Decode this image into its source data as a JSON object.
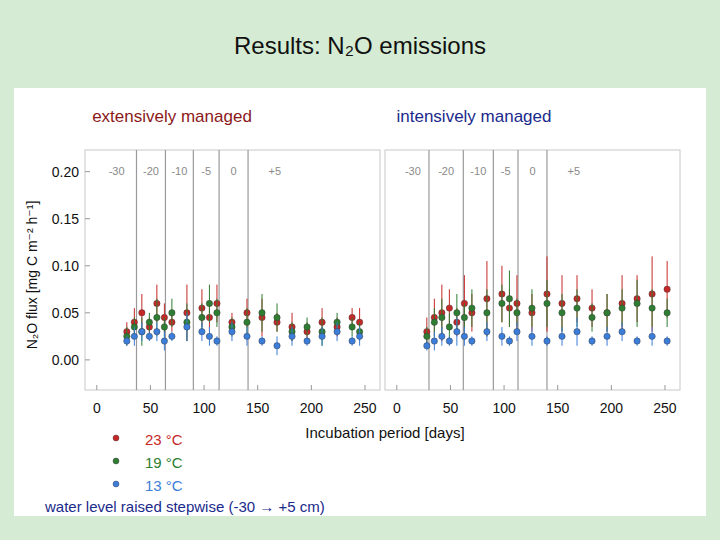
{
  "slide": {
    "title": "Results: N₂O emissions",
    "x_label": "Incubation period [days]",
    "footer": "water level raised stepwise (-30 → +5 cm)"
  },
  "chart_data": [
    {
      "type": "scatter",
      "title": "extensively managed",
      "y_label": "N₂O flux [mg C m⁻² h⁻¹]",
      "x": [
        28,
        35,
        42,
        49,
        56,
        63,
        70,
        84,
        98,
        105,
        112,
        126,
        140,
        154,
        168,
        182,
        196,
        210,
        224,
        238,
        245
      ],
      "xlim": [
        -11,
        264
      ],
      "xticks": [
        0,
        50,
        100,
        150,
        200,
        250
      ],
      "ylim": [
        -0.032,
        0.223
      ],
      "yticks": [
        {
          "value": 0,
          "label": "0.00"
        },
        {
          "value": 0.05,
          "label": "0.05"
        },
        {
          "value": 0.1,
          "label": "0.10"
        },
        {
          "value": 0.15,
          "label": "0.15"
        },
        {
          "value": 0.2,
          "label": "0.20"
        }
      ],
      "legend": "bottom",
      "series": [
        {
          "name": "23 °C",
          "color": "#c62828",
          "marker": "circle",
          "values": [
            0.03,
            0.04,
            0.05,
            0.035,
            0.06,
            0.045,
            0.04,
            0.05,
            0.055,
            0.045,
            0.06,
            0.04,
            0.05,
            0.045,
            0.04,
            0.035,
            0.03,
            0.04,
            0.035,
            0.045,
            0.04
          ],
          "errors": [
            0.01,
            0.015,
            0.02,
            0.01,
            0.02,
            0.015,
            0.01,
            0.03,
            0.02,
            0.015,
            0.02,
            0.01,
            0.015,
            0.02,
            0.01,
            0.015,
            0.01,
            0.015,
            0.01,
            0.01,
            0.015
          ]
        },
        {
          "name": "19 °C",
          "color": "#2e7d32",
          "marker": "circle",
          "values": [
            0.025,
            0.035,
            0.03,
            0.04,
            0.045,
            0.035,
            0.05,
            0.04,
            0.045,
            0.06,
            0.05,
            0.035,
            0.04,
            0.05,
            0.045,
            0.03,
            0.035,
            0.03,
            0.04,
            0.035,
            0.03
          ],
          "errors": [
            0.01,
            0.01,
            0.015,
            0.01,
            0.02,
            0.01,
            0.015,
            0.02,
            0.015,
            0.02,
            0.015,
            0.01,
            0.015,
            0.02,
            0.015,
            0.01,
            0.01,
            0.015,
            0.01,
            0.01,
            0.01
          ]
        },
        {
          "name": "13 °C",
          "color": "#3b7dd8",
          "marker": "circle",
          "values": [
            0.02,
            0.025,
            0.03,
            0.025,
            0.03,
            0.02,
            0.025,
            0.035,
            0.03,
            0.025,
            0.02,
            0.03,
            0.025,
            0.02,
            0.015,
            0.025,
            0.02,
            0.025,
            0.03,
            0.02,
            0.025
          ],
          "errors": [
            0.005,
            0.01,
            0.01,
            0.005,
            0.01,
            0.01,
            0.005,
            0.015,
            0.01,
            0.01,
            0.005,
            0.01,
            0.01,
            0.005,
            0.01,
            0.01,
            0.005,
            0.01,
            0.01,
            0.005,
            0.01
          ]
        }
      ],
      "phases": [
        {
          "label": "-30",
          "start": 0,
          "end": 37
        },
        {
          "label": "-20",
          "start": 37,
          "end": 64
        },
        {
          "label": "-10",
          "start": 64,
          "end": 90
        },
        {
          "label": "-5",
          "start": 90,
          "end": 114
        },
        {
          "label": "0",
          "start": 114,
          "end": 141
        },
        {
          "label": "+5",
          "start": 141,
          "end": 262
        }
      ]
    },
    {
      "type": "scatter",
      "title": "intensively managed",
      "x": [
        28,
        35,
        42,
        49,
        56,
        63,
        70,
        84,
        98,
        105,
        112,
        126,
        140,
        154,
        168,
        182,
        196,
        210,
        224,
        238,
        252
      ],
      "xlim": [
        -11,
        264
      ],
      "xticks": [
        0,
        50,
        100,
        150,
        200,
        250
      ],
      "ylim": [
        -0.032,
        0.223
      ],
      "tick_labels": "x",
      "series": [
        {
          "color": "#c62828",
          "marker": "circle",
          "values": [
            0.03,
            0.045,
            0.05,
            0.055,
            0.04,
            0.06,
            0.05,
            0.065,
            0.07,
            0.055,
            0.06,
            0.05,
            0.07,
            0.06,
            0.065,
            0.055,
            0.05,
            0.06,
            0.065,
            0.07,
            0.075
          ],
          "errors": [
            0.015,
            0.02,
            0.03,
            0.02,
            0.015,
            0.03,
            0.02,
            0.04,
            0.03,
            0.02,
            0.03,
            0.02,
            0.04,
            0.03,
            0.025,
            0.02,
            0.02,
            0.03,
            0.025,
            0.04,
            0.03
          ]
        },
        {
          "color": "#2e7d32",
          "marker": "circle",
          "values": [
            0.025,
            0.04,
            0.045,
            0.035,
            0.05,
            0.045,
            0.055,
            0.05,
            0.06,
            0.065,
            0.05,
            0.055,
            0.06,
            0.05,
            0.055,
            0.045,
            0.05,
            0.055,
            0.06,
            0.055,
            0.05
          ],
          "errors": [
            0.01,
            0.015,
            0.02,
            0.015,
            0.02,
            0.015,
            0.02,
            0.025,
            0.02,
            0.03,
            0.015,
            0.02,
            0.025,
            0.02,
            0.02,
            0.015,
            0.02,
            0.02,
            0.025,
            0.02,
            0.015
          ]
        },
        {
          "color": "#3b7dd8",
          "marker": "circle",
          "values": [
            0.015,
            0.02,
            0.025,
            0.02,
            0.03,
            0.025,
            0.02,
            0.03,
            0.025,
            0.02,
            0.03,
            0.025,
            0.02,
            0.025,
            0.03,
            0.02,
            0.025,
            0.03,
            0.02,
            0.025,
            0.02
          ],
          "errors": [
            0.005,
            0.01,
            0.01,
            0.005,
            0.015,
            0.01,
            0.005,
            0.01,
            0.01,
            0.005,
            0.01,
            0.01,
            0.005,
            0.01,
            0.015,
            0.005,
            0.01,
            0.01,
            0.005,
            0.01,
            0.005
          ]
        }
      ],
      "phases": [
        {
          "label": "-30",
          "start": 0,
          "end": 30
        },
        {
          "label": "-20",
          "start": 30,
          "end": 62
        },
        {
          "label": "-10",
          "start": 62,
          "end": 90
        },
        {
          "label": "-5",
          "start": 90,
          "end": 113
        },
        {
          "label": "0",
          "start": 113,
          "end": 140
        },
        {
          "label": "+5",
          "start": 140,
          "end": 262
        }
      ]
    }
  ]
}
